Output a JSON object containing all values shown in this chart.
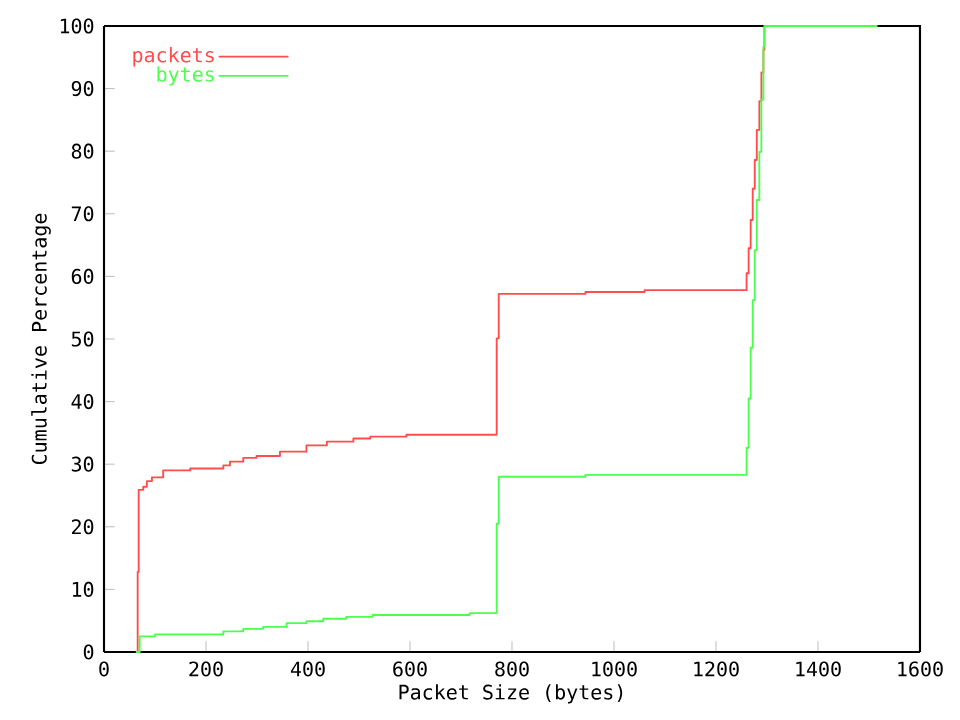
{
  "chart_data": {
    "type": "step",
    "xlabel": "Packet Size (bytes)",
    "ylabel": "Cumulative Percentage",
    "xlim": [
      0,
      1600
    ],
    "xticks": [
      0,
      200,
      400,
      600,
      800,
      1000,
      1200,
      1400,
      1600
    ],
    "ylim": [
      0,
      100
    ],
    "yticks": [
      0,
      10,
      20,
      30,
      40,
      50,
      60,
      70,
      80,
      90,
      100
    ],
    "grid": false,
    "legend": "top left",
    "series": [
      {
        "name": "packets",
        "color": "#ff4d4d",
        "x": [
          64,
          66,
          68,
          77,
          84,
          94,
          116,
          169,
          234,
          247,
          273,
          299,
          345,
          397,
          437,
          489,
          522,
          593,
          770,
          774,
          944,
          1060,
          1260,
          1264,
          1268,
          1272,
          1276,
          1280,
          1285,
          1289,
          1293,
          1295,
          1515
        ],
        "values": [
          0,
          12.8,
          25.9,
          26.4,
          27.3,
          27.9,
          29.0,
          29.3,
          29.8,
          30.4,
          31.0,
          31.3,
          32.0,
          33.0,
          33.6,
          34.1,
          34.4,
          34.7,
          50.1,
          57.2,
          57.5,
          57.8,
          60.5,
          64.5,
          69,
          74,
          78.6,
          83.4,
          88,
          92.6,
          96.2,
          100,
          100
        ]
      },
      {
        "name": "bytes",
        "color": "#4dff4d",
        "x": [
          64,
          70,
          100,
          234,
          273,
          312,
          358,
          397,
          430,
          475,
          527,
          717,
          770,
          774,
          944,
          1260,
          1264,
          1268,
          1272,
          1276,
          1280,
          1285,
          1289,
          1293,
          1295,
          1515
        ],
        "values": [
          0,
          2.5,
          2.8,
          3.3,
          3.7,
          4.0,
          4.6,
          4.9,
          5.3,
          5.6,
          5.9,
          6.2,
          20.5,
          28.0,
          28.3,
          32.6,
          40.5,
          48.6,
          56.2,
          64.2,
          72.2,
          79.9,
          88.2,
          96.7,
          100,
          100
        ]
      }
    ]
  }
}
